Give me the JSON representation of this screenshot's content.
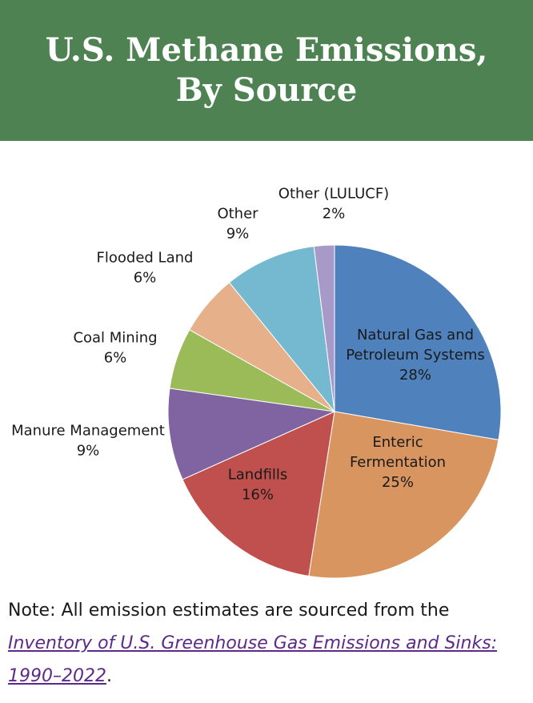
{
  "header": {
    "title_line1": "U.S. Methane Emissions,",
    "title_line2": "By Source",
    "background": "#4f8253"
  },
  "chart_data": {
    "type": "pie",
    "slices": [
      {
        "label_lines": [
          "Natural Gas and",
          "Petroleum Systems",
          "28%"
        ],
        "value": 28,
        "color": "#4f81bd"
      },
      {
        "label_lines": [
          "Enteric",
          "Fermentation",
          "25%"
        ],
        "value": 25,
        "color": "#d99560"
      },
      {
        "label_lines": [
          "Landfills",
          "16%"
        ],
        "value": 16,
        "color": "#c0504d"
      },
      {
        "label_lines": [
          "Manure Management",
          "9%"
        ],
        "value": 9,
        "color": "#8064a2"
      },
      {
        "label_lines": [
          "Coal Mining",
          "6%"
        ],
        "value": 6,
        "color": "#9bbb59"
      },
      {
        "label_lines": [
          "Flooded Land",
          "6%"
        ],
        "value": 6,
        "color": "#e5b08a"
      },
      {
        "label_lines": [
          "Other",
          "9%"
        ],
        "value": 9,
        "color": "#74b9cf"
      },
      {
        "label_lines": [
          "Other (LULUCF)",
          "2%"
        ],
        "value": 2,
        "color": "#a89ac8"
      }
    ]
  },
  "note": {
    "prefix": "Note: All emission estimates are sourced from the ",
    "link_text": "Inventory of U.S. Greenhouse Gas Emissions and Sinks: 1990–2022",
    "suffix": "."
  }
}
